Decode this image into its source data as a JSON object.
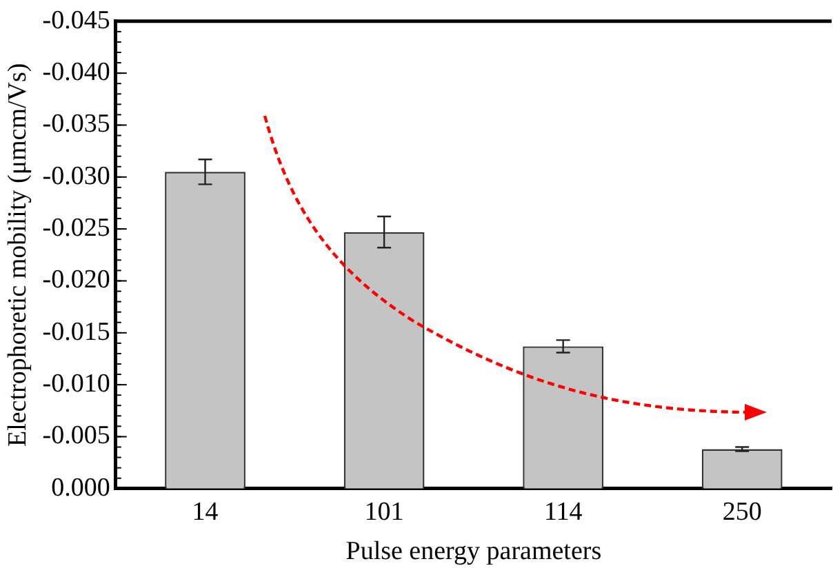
{
  "chart_data": {
    "type": "bar",
    "xlabel": "Pulse energy parameters",
    "ylabel": "Electrophoretic mobility (μmcm/Vs)",
    "categories": [
      "14",
      "101",
      "114",
      "250"
    ],
    "values": [
      -0.0305,
      -0.0247,
      -0.0137,
      -0.0038
    ],
    "errors": [
      0.0012,
      0.0015,
      0.0006,
      0.0002
    ],
    "color": "#c4c4c4",
    "ylim": [
      0,
      -0.045
    ],
    "yticks": [
      {
        "value": 0,
        "label": "0.000"
      },
      {
        "value": -0.005,
        "label": "-0.005"
      },
      {
        "value": -0.01,
        "label": "-0.010"
      },
      {
        "value": -0.015,
        "label": "-0.015"
      },
      {
        "value": -0.02,
        "label": "-0.020"
      },
      {
        "value": -0.025,
        "label": "-0.025"
      },
      {
        "value": -0.03,
        "label": "-0.030"
      },
      {
        "value": -0.035,
        "label": "-0.035"
      },
      {
        "value": -0.04,
        "label": "-0.040"
      },
      {
        "value": -0.045,
        "label": "-0.045"
      }
    ],
    "grid": false,
    "legend": false
  }
}
